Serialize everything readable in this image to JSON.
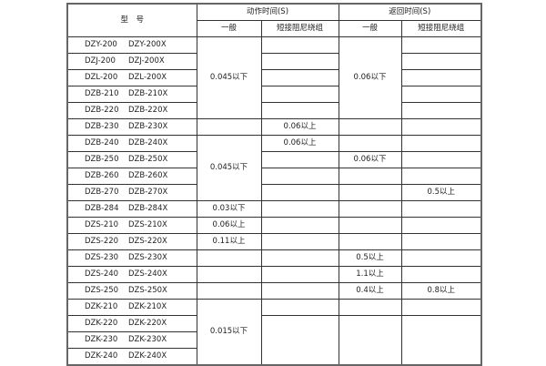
{
  "header": {
    "model": "型　号",
    "action_time": "动作时间(S)",
    "return_time": "返回时间(S)",
    "general": "一般",
    "short_winding": "短接阻尼绕组"
  },
  "models": [
    [
      "DZY-200",
      "DZY-200X"
    ],
    [
      "DZJ-200",
      "DZJ-200X"
    ],
    [
      "DZL-200",
      "DZL-200X"
    ],
    [
      "DZB-210",
      "DZB-210X"
    ],
    [
      "DZB-220",
      "DZB-220X"
    ],
    [
      "DZB-230",
      "DZB-230X"
    ],
    [
      "DZB-240",
      "DZB-240X"
    ],
    [
      "DZB-250",
      "DZB-250X"
    ],
    [
      "DZB-260",
      "DZB-260X"
    ],
    [
      "DZB-270",
      "DZB-270X"
    ],
    [
      "DZB-284",
      "DZB-284X"
    ],
    [
      "DZS-210",
      "DZS-210X"
    ],
    [
      "DZS-220",
      "DZS-220X"
    ],
    [
      "DZS-230",
      "DZS-230X"
    ],
    [
      "DZS-240",
      "DZS-240X"
    ],
    [
      "DZS-250",
      "DZS-250X"
    ],
    [
      "DZK-210",
      "DZK-210X"
    ],
    [
      "DZK-220",
      "DZK-220X"
    ],
    [
      "DZK-230",
      "DZK-230X"
    ],
    [
      "DZK-240",
      "DZK-240X"
    ]
  ],
  "columns": {
    "action_general": [
      {
        "text": "0.045以下",
        "span": 5
      },
      {
        "text": "",
        "span": 1
      },
      {
        "text": "0.045以下",
        "span": 4
      },
      {
        "text": "0.03以下",
        "span": 1
      },
      {
        "text": "0.06以上",
        "span": 1
      },
      {
        "text": "0.11以上",
        "span": 1
      },
      {
        "text": "",
        "span": 1
      },
      {
        "text": "",
        "span": 1
      },
      {
        "text": "",
        "span": 1
      },
      {
        "text": "0.015以下",
        "span": 4
      }
    ],
    "action_short": [
      {
        "text": "",
        "span": 1
      },
      {
        "text": "",
        "span": 1
      },
      {
        "text": "",
        "span": 1
      },
      {
        "text": "",
        "span": 1
      },
      {
        "text": "",
        "span": 1
      },
      {
        "text": "0.06以上",
        "span": 1
      },
      {
        "text": "0.06以上",
        "span": 1
      },
      {
        "text": "",
        "span": 1
      },
      {
        "text": "",
        "span": 1
      },
      {
        "text": "",
        "span": 1
      },
      {
        "text": "",
        "span": 1
      },
      {
        "text": "",
        "span": 1
      },
      {
        "text": "",
        "span": 1
      },
      {
        "text": "",
        "span": 1
      },
      {
        "text": "",
        "span": 1
      },
      {
        "text": "",
        "span": 1
      },
      {
        "text": "",
        "span": 1
      },
      {
        "text": "",
        "span": 3
      }
    ],
    "return_general": [
      {
        "text": "0.06以下",
        "span": 5
      },
      {
        "text": "",
        "span": 1
      },
      {
        "text": "",
        "span": 1
      },
      {
        "text": "0.06以下",
        "span": 1
      },
      {
        "text": "",
        "span": 1
      },
      {
        "text": "",
        "span": 1
      },
      {
        "text": "",
        "span": 1
      },
      {
        "text": "",
        "span": 1
      },
      {
        "text": "",
        "span": 1
      },
      {
        "text": "0.5以上",
        "span": 1
      },
      {
        "text": "1.1以上",
        "span": 1
      },
      {
        "text": "0.4以上",
        "span": 1
      },
      {
        "text": "",
        "span": 1
      },
      {
        "text": "",
        "span": 3
      }
    ],
    "return_short": [
      {
        "text": "",
        "span": 1
      },
      {
        "text": "",
        "span": 1
      },
      {
        "text": "",
        "span": 1
      },
      {
        "text": "",
        "span": 1
      },
      {
        "text": "",
        "span": 1
      },
      {
        "text": "",
        "span": 1
      },
      {
        "text": "",
        "span": 1
      },
      {
        "text": "",
        "span": 1
      },
      {
        "text": "",
        "span": 1
      },
      {
        "text": "0.5以上",
        "span": 1
      },
      {
        "text": "",
        "span": 1
      },
      {
        "text": "",
        "span": 1
      },
      {
        "text": "",
        "span": 1
      },
      {
        "text": "",
        "span": 1
      },
      {
        "text": "",
        "span": 1
      },
      {
        "text": "0.8以上",
        "span": 1
      },
      {
        "text": "",
        "span": 1
      },
      {
        "text": "",
        "span": 3
      }
    ]
  }
}
